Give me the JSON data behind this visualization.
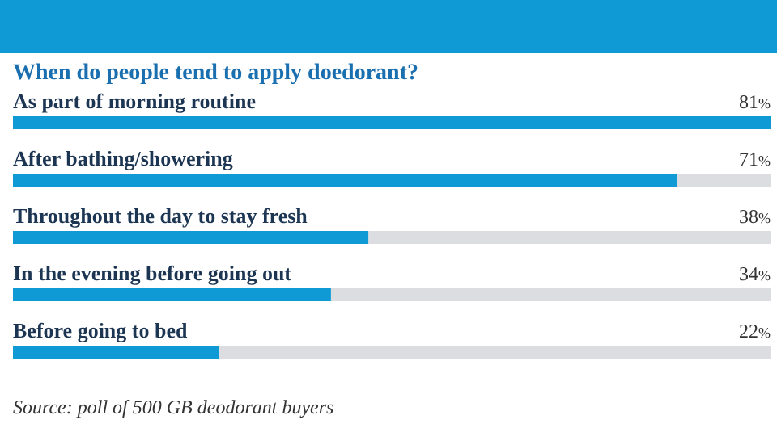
{
  "chart_data": {
    "type": "bar",
    "orientation": "horizontal",
    "title": "When do people tend to apply doedorant?",
    "categories": [
      "As part of morning routine",
      "After bathing/showering",
      "Throughout the day to stay fresh",
      "In the evening before going out",
      "Before going to bed"
    ],
    "values": [
      81,
      71,
      38,
      34,
      22
    ],
    "value_labels": [
      "81%",
      "71%",
      "38%",
      "34%",
      "22%"
    ],
    "color": "#0f9ad6",
    "annotations": [
      "Source: poll of 500 GB deodorant buyers"
    ]
  }
}
